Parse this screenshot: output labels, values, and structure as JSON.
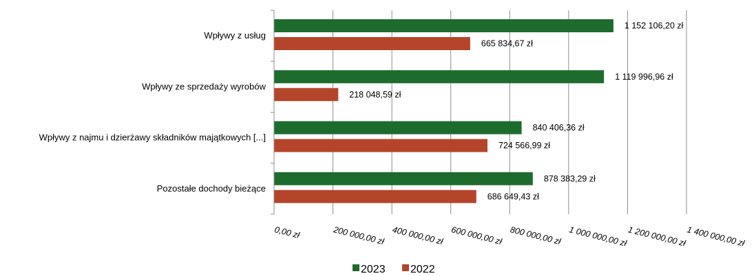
{
  "chart_data": {
    "type": "bar",
    "orientation": "horizontal",
    "categories": [
      "Wpływy z usług",
      "Wpływy ze sprzedaży wyrobów",
      "Wpływy z najmu i dzierżawy składników majątkowych [...]",
      "Pozostałe dochody bieżące"
    ],
    "series": [
      {
        "name": "2023",
        "color": "#1e6b2e",
        "values": [
          1152106.2,
          1119996.96,
          840406.36,
          878383.29
        ],
        "labels": [
          "1 152 106,20 zł",
          "1 119 996,96 zł",
          "840 406,36 zł",
          "878 383,29 zł"
        ]
      },
      {
        "name": "2022",
        "color": "#b5452a",
        "values": [
          665834.67,
          218048.59,
          724566.99,
          686649.43
        ],
        "labels": [
          "665 834,67 zł",
          "218 048,59 zł",
          "724 566,99 zł",
          "686 649,43 zł"
        ]
      }
    ],
    "xlim": [
      0,
      1400000
    ],
    "xticks": [
      0,
      200000,
      400000,
      600000,
      800000,
      1000000,
      1200000,
      1400000
    ],
    "xtick_labels": [
      "0,00 zł",
      "200 000,00 zł",
      "400 000,00 zł",
      "600 000,00 zł",
      "800 000,00 zł",
      "1 000 000,00 zł",
      "1 200 000,00 zł",
      "1 400 000,00 zł"
    ],
    "grid": true,
    "legend_position": "bottom",
    "title": "",
    "xlabel": "",
    "ylabel": ""
  }
}
